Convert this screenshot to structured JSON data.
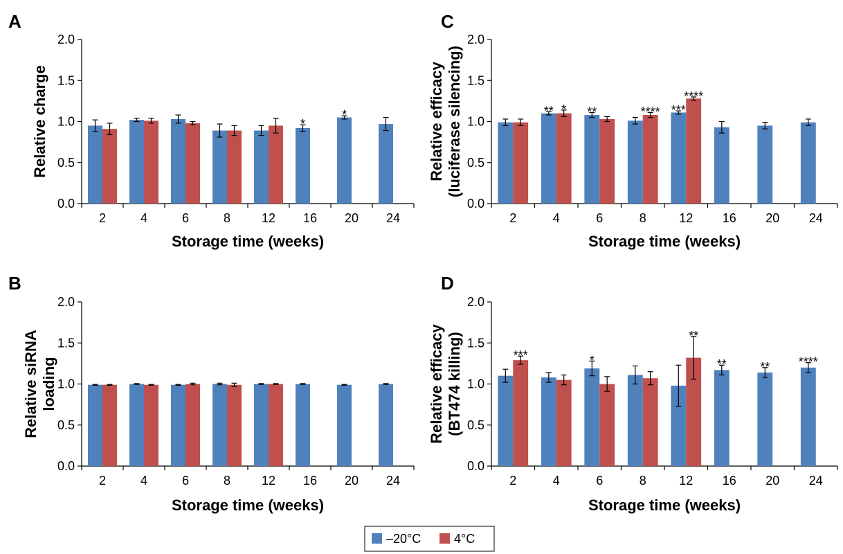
{
  "legend": {
    "items": [
      {
        "label": "–20°C",
        "color": "#4f81bd"
      },
      {
        "label": "4°C",
        "color": "#c0504d"
      }
    ]
  },
  "chart_data": [
    {
      "panel": "A",
      "type": "bar",
      "title": "",
      "xlabel": "Storage time (weeks)",
      "ylabel": [
        "Relative charge"
      ],
      "ylim": [
        0,
        2.0
      ],
      "yticks": [
        "0.0",
        "0.5",
        "1.0",
        "1.5",
        "2.0"
      ],
      "categories": [
        "2",
        "4",
        "6",
        "8",
        "12",
        "16",
        "20",
        "24"
      ],
      "series": [
        {
          "name": "–20°C",
          "values": [
            0.95,
            1.02,
            1.03,
            0.89,
            0.89,
            0.92,
            1.05,
            0.97
          ],
          "errors": [
            0.07,
            0.02,
            0.05,
            0.08,
            0.06,
            0.04,
            0.02,
            0.08
          ]
        },
        {
          "name": "4°C",
          "values": [
            0.91,
            1.01,
            0.98,
            0.89,
            0.95,
            null,
            null,
            null
          ],
          "errors": [
            0.07,
            0.03,
            0.02,
            0.06,
            0.09,
            null,
            null,
            null
          ]
        }
      ],
      "annotations": [
        {
          "category": "16",
          "series": 0,
          "text": "*"
        },
        {
          "category": "20",
          "series": 0,
          "text": "*"
        }
      ]
    },
    {
      "panel": "B",
      "type": "bar",
      "title": "",
      "xlabel": "Storage time (weeks)",
      "ylabel": [
        "Relative siRNA",
        "loading"
      ],
      "ylim": [
        0,
        2.0
      ],
      "yticks": [
        "0.0",
        "0.5",
        "1.0",
        "1.5",
        "2.0"
      ],
      "categories": [
        "2",
        "4",
        "6",
        "8",
        "12",
        "16",
        "20",
        "24"
      ],
      "series": [
        {
          "name": "–20°C",
          "values": [
            0.99,
            1.0,
            0.99,
            1.0,
            1.0,
            1.0,
            0.99,
            1.0
          ],
          "errors": [
            0.005,
            0.005,
            0.005,
            0.01,
            0.005,
            0.005,
            0.005,
            0.005
          ]
        },
        {
          "name": "4°C",
          "values": [
            0.99,
            0.99,
            1.0,
            0.99,
            1.0,
            null,
            null,
            null
          ],
          "errors": [
            0.005,
            0.005,
            0.01,
            0.02,
            0.005,
            null,
            null,
            null
          ]
        }
      ],
      "annotations": []
    },
    {
      "panel": "C",
      "type": "bar",
      "title": "",
      "xlabel": "Storage time (weeks)",
      "ylabel": [
        "Relative efficacy",
        "(luciferase silencing)"
      ],
      "ylim": [
        0,
        2.0
      ],
      "yticks": [
        "0.0",
        "0.5",
        "1.0",
        "1.5",
        "2.0"
      ],
      "categories": [
        "2",
        "4",
        "6",
        "8",
        "12",
        "16",
        "20",
        "24"
      ],
      "series": [
        {
          "name": "–20°C",
          "values": [
            0.99,
            1.1,
            1.08,
            1.01,
            1.11,
            0.93,
            0.95,
            0.99
          ],
          "errors": [
            0.04,
            0.02,
            0.03,
            0.04,
            0.02,
            0.07,
            0.04,
            0.04
          ]
        },
        {
          "name": "4°C",
          "values": [
            0.99,
            1.1,
            1.03,
            1.08,
            1.28,
            null,
            null,
            null
          ],
          "errors": [
            0.04,
            0.04,
            0.03,
            0.03,
            0.02,
            null,
            null,
            null
          ]
        }
      ],
      "annotations": [
        {
          "category": "4",
          "series": 0,
          "text": "**"
        },
        {
          "category": "4",
          "series": 1,
          "text": "*"
        },
        {
          "category": "6",
          "series": 0,
          "text": "**"
        },
        {
          "category": "8",
          "series": 1,
          "text": "****"
        },
        {
          "category": "12",
          "series": 0,
          "text": "***"
        },
        {
          "category": "12",
          "series": 1,
          "text": "****"
        }
      ]
    },
    {
      "panel": "D",
      "type": "bar",
      "title": "",
      "xlabel": "Storage time (weeks)",
      "ylabel": [
        "Relative efficacy",
        "(BT474 killing)"
      ],
      "ylim": [
        0,
        2.0
      ],
      "yticks": [
        "0.0",
        "0.5",
        "1.0",
        "1.5",
        "2.0"
      ],
      "categories": [
        "2",
        "4",
        "6",
        "8",
        "12",
        "16",
        "20",
        "24"
      ],
      "series": [
        {
          "name": "–20°C",
          "values": [
            1.1,
            1.08,
            1.19,
            1.11,
            0.98,
            1.17,
            1.14,
            1.2
          ],
          "errors": [
            0.08,
            0.06,
            0.09,
            0.11,
            0.25,
            0.06,
            0.06,
            0.06
          ]
        },
        {
          "name": "4°C",
          "values": [
            1.29,
            1.05,
            1.0,
            1.07,
            1.32,
            null,
            null,
            null
          ],
          "errors": [
            0.05,
            0.06,
            0.09,
            0.08,
            0.26,
            null,
            null,
            null
          ]
        }
      ],
      "annotations": [
        {
          "category": "2",
          "series": 1,
          "text": "***"
        },
        {
          "category": "6",
          "series": 0,
          "text": "*"
        },
        {
          "category": "12",
          "series": 1,
          "text": "**"
        },
        {
          "category": "16",
          "series": 0,
          "text": "**"
        },
        {
          "category": "20",
          "series": 0,
          "text": "**"
        },
        {
          "category": "24",
          "series": 0,
          "text": "****"
        }
      ]
    }
  ]
}
